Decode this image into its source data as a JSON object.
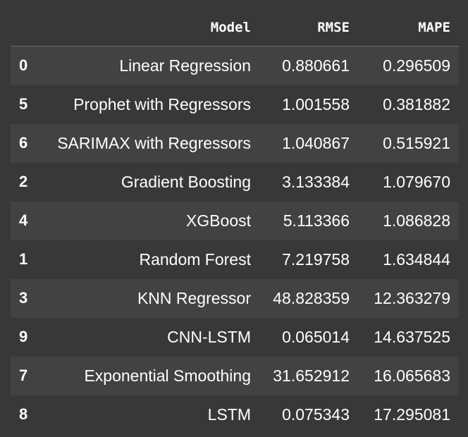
{
  "table": {
    "columns": [
      "",
      "Model",
      "RMSE",
      "MAPE"
    ],
    "rows": [
      {
        "index": "0",
        "model": "Linear Regression",
        "rmse": "0.880661",
        "mape": "0.296509"
      },
      {
        "index": "5",
        "model": "Prophet with Regressors",
        "rmse": "1.001558",
        "mape": "0.381882"
      },
      {
        "index": "6",
        "model": "SARIMAX with Regressors",
        "rmse": "1.040867",
        "mape": "0.515921"
      },
      {
        "index": "2",
        "model": "Gradient Boosting",
        "rmse": "3.133384",
        "mape": "1.079670"
      },
      {
        "index": "4",
        "model": "XGBoost",
        "rmse": "5.113366",
        "mape": "1.086828"
      },
      {
        "index": "1",
        "model": "Random Forest",
        "rmse": "7.219758",
        "mape": "1.634844"
      },
      {
        "index": "3",
        "model": "KNN Regressor",
        "rmse": "48.828359",
        "mape": "12.363279"
      },
      {
        "index": "9",
        "model": "CNN-LSTM",
        "rmse": "0.065014",
        "mape": "14.637525"
      },
      {
        "index": "7",
        "model": "Exponential Smoothing",
        "rmse": "31.652912",
        "mape": "16.065683"
      },
      {
        "index": "8",
        "model": "LSTM",
        "rmse": "0.075343",
        "mape": "17.295081"
      }
    ]
  },
  "colors": {
    "background": "#383838",
    "alt_row": "#424242",
    "text": "#ffffff",
    "header_rule": "#6a6a6a"
  }
}
